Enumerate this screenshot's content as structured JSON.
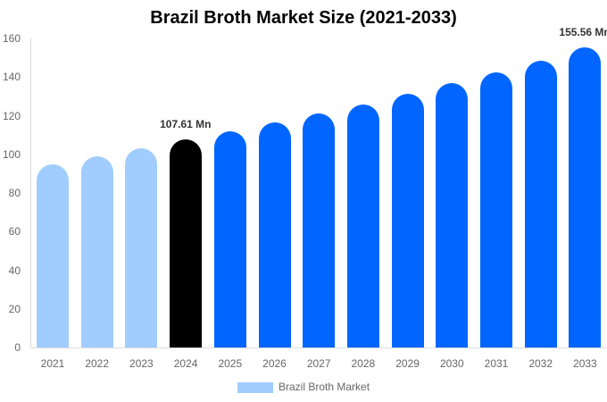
{
  "chart_data": {
    "type": "bar",
    "title": "Brazil Broth Market Size (2021-2033)",
    "xlabel": "",
    "ylabel": "",
    "ylim": [
      0,
      160
    ],
    "yticks": [
      0,
      20,
      40,
      60,
      80,
      100,
      120,
      140,
      160
    ],
    "grid": false,
    "legend_position": "bottom",
    "categories": [
      "2021",
      "2022",
      "2023",
      "2024",
      "2025",
      "2026",
      "2027",
      "2028",
      "2029",
      "2030",
      "2031",
      "2032",
      "2033"
    ],
    "series": [
      {
        "name": "Brazil Broth Market",
        "values": [
          94.8,
          99.0,
          103.1,
          107.61,
          112.0,
          116.6,
          121.2,
          125.9,
          131.5,
          137.0,
          142.6,
          148.6,
          155.56
        ]
      }
    ],
    "bar_colors": [
      "#a0cdfd",
      "#a0cdfd",
      "#a0cdfd",
      "#000000",
      "#0066ff",
      "#0066ff",
      "#0066ff",
      "#0066ff",
      "#0066ff",
      "#0066ff",
      "#0066ff",
      "#0066ff",
      "#0066ff"
    ],
    "annotations": [
      {
        "category": "2024",
        "text": "107.61 Mn"
      },
      {
        "category": "2033",
        "text": "155.56 Mn"
      }
    ]
  },
  "legend": {
    "label": "Brazil Broth Market",
    "color": "#a0cdfd"
  }
}
